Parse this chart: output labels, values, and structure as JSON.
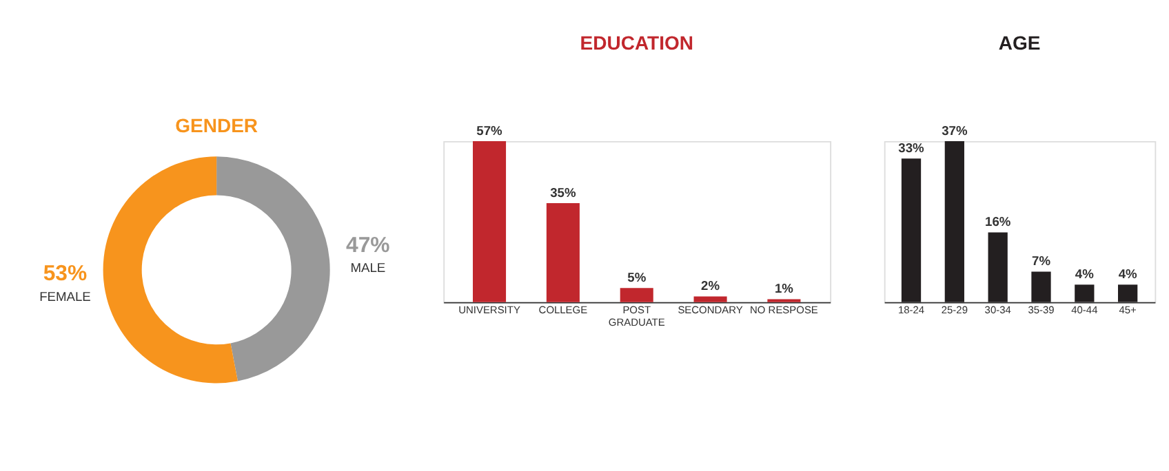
{
  "chart_data": [
    {
      "type": "donut",
      "title": "GENDER",
      "categories": [
        "MALE",
        "FEMALE"
      ],
      "values": [
        47,
        53
      ],
      "colors": [
        "#999999",
        "#f7941d"
      ],
      "value_labels": [
        "47%",
        "53%"
      ],
      "legend": false
    },
    {
      "type": "bar",
      "title": "EDUCATION",
      "categories": [
        "UNIVERSITY",
        "COLLEGE",
        "POST GRADUATE",
        "SECONDARY",
        "NO RESPOSE"
      ],
      "values": [
        57,
        35,
        5,
        2,
        1
      ],
      "color": "#c1272d",
      "value_labels": [
        "57%",
        "35%",
        "5%",
        "2%",
        "1%"
      ],
      "tick_labels": "x"
    },
    {
      "type": "bar",
      "title": "AGE",
      "categories": [
        "18-24",
        "25-29",
        "30-34",
        "35-39",
        "40-44",
        "45+"
      ],
      "values": [
        33,
        37,
        16,
        7,
        4,
        4
      ],
      "color": "#231f20",
      "value_labels": [
        "33%",
        "37%",
        "16%",
        "7%",
        "4%",
        "4%"
      ],
      "tick_labels": "x"
    }
  ]
}
